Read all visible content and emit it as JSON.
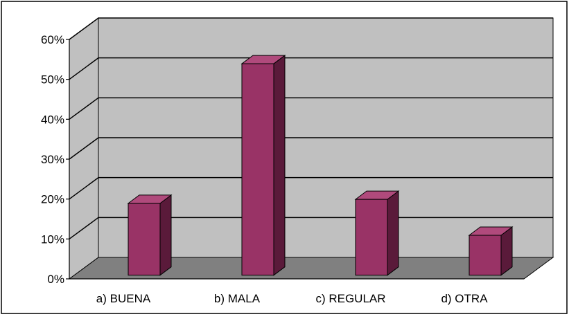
{
  "chart_data": {
    "type": "bar",
    "categories": [
      "a) BUENA",
      "b) MALA",
      "c) REGULAR",
      "d) OTRA"
    ],
    "values": [
      18,
      53,
      19,
      10
    ],
    "unit": "%",
    "ylim": [
      0,
      60
    ],
    "yticks": [
      0,
      10,
      20,
      30,
      40,
      50,
      60
    ],
    "ytick_labels": [
      "0%",
      "10%",
      "20%",
      "30%",
      "40%",
      "50%",
      "60%"
    ],
    "grid": true,
    "title": "",
    "xlabel": "",
    "ylabel": "",
    "style": "3d-column",
    "colors": {
      "bar_front": "#993366",
      "bar_side": "#5a1a3a",
      "bar_top": "#b04a7c",
      "wall": "#c0c0c0",
      "floor": "#808080",
      "gridline": "#000000"
    }
  }
}
